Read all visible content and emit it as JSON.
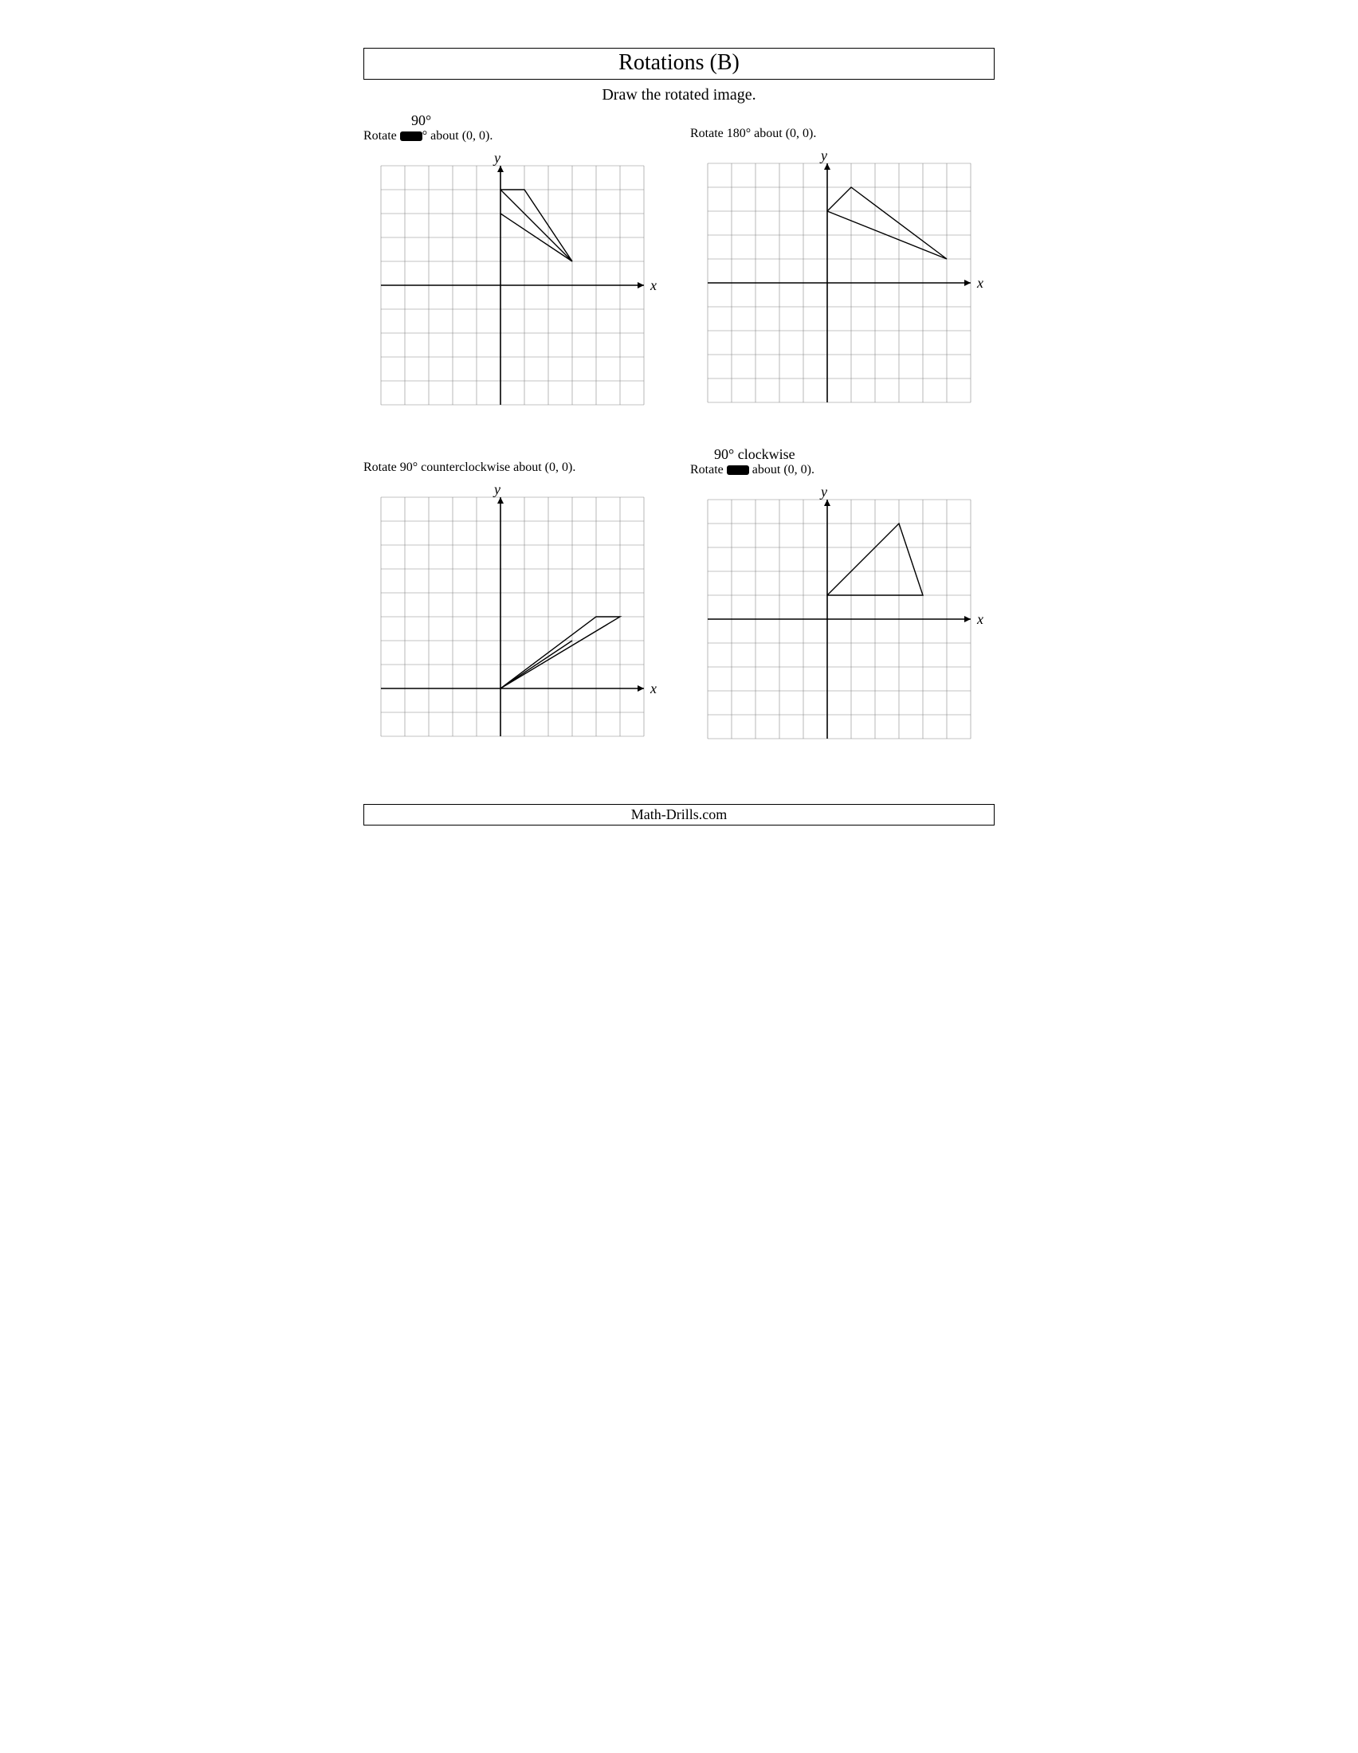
{
  "title": "Rotations (B)",
  "subtitle": "Draw the rotated image.",
  "footer": "Math-Drills.com",
  "grid": {
    "cell": 30,
    "cols": 11,
    "rows": 10,
    "line_color": "#888888",
    "line_width": 0.6,
    "axis_color": "#000000",
    "axis_width": 1.6,
    "shape_color": "#000000",
    "shape_width": 1.4,
    "background": "#ffffff",
    "label_fontsize": 18,
    "label_fontstyle": "italic"
  },
  "problems": [
    {
      "id": "p1",
      "handwritten_above": "90°",
      "instruction_prefix": "Rotate ",
      "instruction_scribble": true,
      "instruction_suffix": "° about (0, 0).",
      "origin_col": 5,
      "origin_row": 5,
      "x_label": "x",
      "y_label": "y",
      "shape": [
        [
          0,
          4
        ],
        [
          1,
          4
        ],
        [
          3,
          1
        ],
        [
          0,
          4
        ]
      ],
      "extra_line": [
        [
          0,
          3
        ],
        [
          3,
          1
        ]
      ]
    },
    {
      "id": "p2",
      "handwritten_above": "",
      "instruction_prefix": "Rotate 180° about (0, 0).",
      "instruction_scribble": false,
      "instruction_suffix": "",
      "origin_col": 5,
      "origin_row": 5,
      "x_label": "x",
      "y_label": "y",
      "shape": [
        [
          0,
          3
        ],
        [
          1,
          4
        ],
        [
          5,
          1
        ],
        [
          0,
          3
        ]
      ],
      "extra_line": null
    },
    {
      "id": "p3",
      "handwritten_above": "",
      "instruction_prefix": "Rotate 90° counterclockwise about (0, 0).",
      "instruction_scribble": false,
      "instruction_suffix": "",
      "origin_col": 5,
      "origin_row": 8,
      "x_label": "x",
      "y_label": "y",
      "shape": [
        [
          0,
          0
        ],
        [
          4,
          3
        ],
        [
          5,
          3
        ],
        [
          0,
          0
        ]
      ],
      "extra_line": [
        [
          0,
          0
        ],
        [
          3,
          2
        ]
      ]
    },
    {
      "id": "p4",
      "handwritten_above": "90° clockwise",
      "instruction_prefix": "Rotate ",
      "instruction_scribble": true,
      "instruction_suffix": " about (0, 0).",
      "origin_col": 5,
      "origin_row": 5,
      "x_label": "x",
      "y_label": "y",
      "shape": [
        [
          0,
          1
        ],
        [
          3,
          4
        ],
        [
          4,
          1
        ],
        [
          0,
          1
        ]
      ],
      "extra_line": null
    }
  ]
}
